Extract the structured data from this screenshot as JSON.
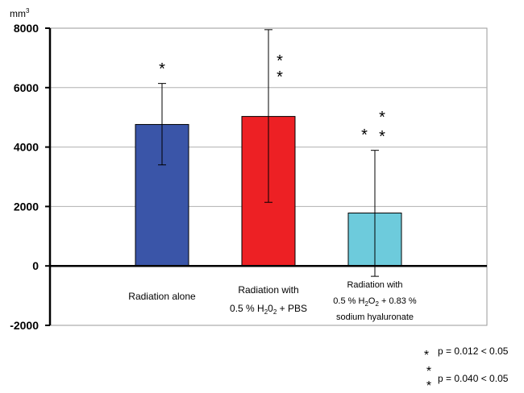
{
  "chart_data": {
    "type": "bar",
    "title": "",
    "xlabel": "",
    "ylabel": "mm3",
    "ylabel_unit_base": "mm",
    "ylabel_unit_sup": "3",
    "ylim": [
      -2000,
      8000
    ],
    "yticks": [
      -2000,
      0,
      2000,
      4000,
      6000,
      8000
    ],
    "ytick_labels": [
      "-2000",
      "0",
      "2000",
      "4000",
      "6000",
      "8000"
    ],
    "grid": true,
    "categories": [
      {
        "lines": [
          [
            "Radiation alone"
          ]
        ]
      },
      {
        "lines": [
          [
            "Radiation with"
          ],
          [
            "0.5 % H",
            "2",
            "0",
            "2",
            " + PBS"
          ]
        ]
      },
      {
        "lines": [
          [
            "Radiation with"
          ],
          [
            "0.5 % H",
            "2",
            "O",
            "2",
            " + 0.83 %"
          ],
          [
            "sodium hyaluronate"
          ]
        ]
      }
    ],
    "values": [
      4760,
      5030,
      1780
    ],
    "error_upper": [
      6140,
      7950,
      3890
    ],
    "error_lower": [
      3400,
      2140,
      -350
    ],
    "colors": [
      "#3a55a8",
      "#ed2024",
      "#6dcbdc"
    ],
    "significance": [
      [
        "*"
      ],
      [
        "*",
        "*"
      ],
      [
        "*",
        "*",
        "*"
      ]
    ],
    "legend": [
      {
        "symbol": "*",
        "text": "p = 0.012 < 0.05"
      },
      {
        "symbol": "* *",
        "text": "p = 0.040 < 0.05"
      }
    ]
  }
}
